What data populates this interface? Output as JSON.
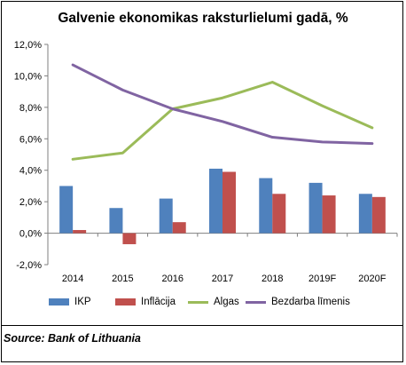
{
  "chart_data": {
    "type": "bar",
    "title": "Galvenie ekonomikas raksturlielumi gadā, %",
    "categories": [
      "2014",
      "2015",
      "2016",
      "2017",
      "2018",
      "2019F",
      "2020F"
    ],
    "y_ticks": [
      "12,0%",
      "10,0%",
      "8,0%",
      "6,0%",
      "4,0%",
      "2,0%",
      "0,0%",
      "-2,0%"
    ],
    "ylim": [
      -2,
      12
    ],
    "grid": false,
    "legend_position": "bottom",
    "series": [
      {
        "name": "IKP",
        "kind": "bar",
        "color": "#4f81bd",
        "values": [
          3.0,
          1.6,
          2.2,
          4.1,
          3.5,
          3.2,
          2.5
        ]
      },
      {
        "name": "Inflācija",
        "kind": "bar",
        "color": "#c0504d",
        "values": [
          0.2,
          -0.7,
          0.7,
          3.9,
          2.5,
          2.4,
          2.3
        ]
      },
      {
        "name": "Algas",
        "kind": "line",
        "color": "#9bbb59",
        "values": [
          4.7,
          5.1,
          7.9,
          8.6,
          9.6,
          8.1,
          6.7
        ]
      },
      {
        "name": "Bezdarba līmenis",
        "kind": "line",
        "color": "#8064a2",
        "values": [
          10.7,
          9.1,
          7.9,
          7.1,
          6.1,
          5.8,
          5.7
        ]
      }
    ]
  },
  "source": "Source: Bank of Lithuania"
}
